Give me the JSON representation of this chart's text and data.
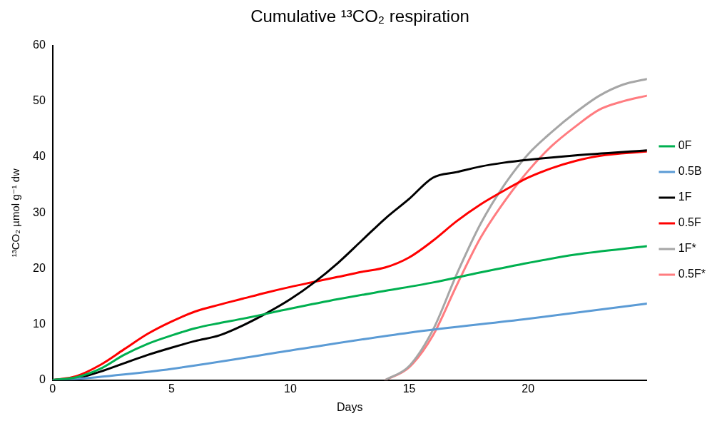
{
  "chart_data": {
    "type": "line",
    "title": "Cumulative ¹³CO₂ respiration",
    "xlabel": "Days",
    "ylabel": "¹³CO₂ µmol g⁻¹ dw",
    "xlim": [
      0,
      25
    ],
    "xticks": [
      0,
      5,
      10,
      15,
      20
    ],
    "ylim": [
      0,
      60
    ],
    "yticks": [
      0,
      10,
      20,
      30,
      40,
      50,
      60
    ],
    "grid": false,
    "legend": "right",
    "marker": "none",
    "line_style": "solid",
    "series": [
      {
        "name": "0F",
        "color": "#00b050",
        "x": [
          0,
          1,
          2,
          3,
          4,
          5,
          6,
          7,
          8,
          10,
          12,
          14,
          16,
          18,
          20,
          22,
          25
        ],
        "values": [
          0,
          0.5,
          2,
          4.5,
          6.5,
          8,
          9.3,
          10.2,
          11,
          12.8,
          14.5,
          16,
          17.5,
          19.3,
          21,
          22.5,
          24
        ]
      },
      {
        "name": "0.5B",
        "color": "#5b9bd5",
        "x": [
          0,
          1,
          3,
          5,
          10,
          15,
          20,
          25
        ],
        "values": [
          0,
          0.2,
          1,
          2,
          5.3,
          8.5,
          11,
          13.7
        ]
      },
      {
        "name": "1F",
        "color": "#000000",
        "x": [
          0,
          1,
          2,
          3,
          4,
          5,
          6,
          7,
          8,
          9,
          10,
          11,
          12,
          13,
          14,
          15,
          16,
          17,
          18,
          19,
          20,
          22,
          25
        ],
        "values": [
          0,
          0.3,
          1.5,
          3,
          4.5,
          5.8,
          7,
          8,
          9.8,
          12,
          14.5,
          17.5,
          21,
          25,
          29,
          32.5,
          36.3,
          37.3,
          38.3,
          39,
          39.5,
          40.3,
          41.2
        ]
      },
      {
        "name": "0.5F",
        "color": "#ff0000",
        "x": [
          0,
          1,
          2,
          3,
          4,
          5,
          6,
          7,
          8,
          9,
          10,
          11,
          12,
          13,
          14,
          15,
          16,
          17,
          18,
          19,
          20,
          21,
          22,
          23,
          25
        ],
        "values": [
          0,
          0.7,
          2.7,
          5.5,
          8.3,
          10.5,
          12.3,
          13.5,
          14.6,
          15.7,
          16.7,
          17.6,
          18.5,
          19.4,
          20.2,
          22,
          25,
          28.5,
          31.5,
          34,
          36.3,
          38,
          39.3,
          40.2,
          41
        ]
      },
      {
        "name": "1F*",
        "color": "#a6a6a6",
        "x": [
          14,
          15,
          16,
          17,
          18,
          19,
          20,
          21,
          22,
          23,
          24,
          25
        ],
        "values": [
          0,
          2.5,
          9,
          19,
          28,
          35,
          40.5,
          44.5,
          48,
          51,
          53,
          54
        ]
      },
      {
        "name": "0.5F*",
        "color": "#ff7c80",
        "x": [
          14,
          15,
          16,
          17,
          18,
          19,
          20,
          21,
          22,
          23,
          24,
          25
        ],
        "values": [
          0,
          2.3,
          8,
          17,
          25.5,
          32,
          37.5,
          42,
          45.5,
          48.5,
          50,
          51
        ]
      }
    ]
  }
}
